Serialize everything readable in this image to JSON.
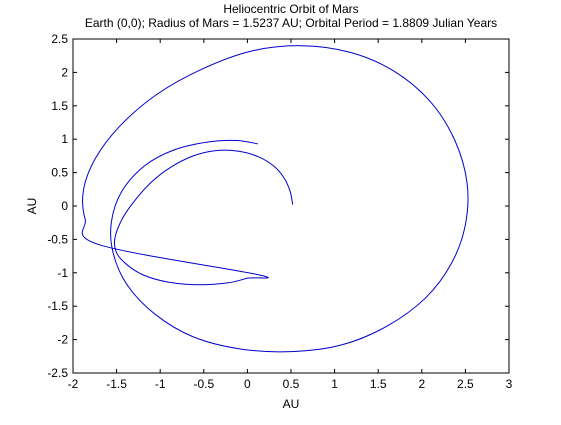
{
  "figure": {
    "background": "#ffffff"
  },
  "chart_data": {
    "type": "line",
    "title": "Heliocentric Orbit of Mars",
    "subtitle": "Earth (0,0); Radius of Mars = 1.5237 AU; Orbital Period = 1.8809 Julian Years",
    "xlabel": "AU",
    "ylabel": "AU",
    "xlim": [
      -2,
      3
    ],
    "ylim": [
      -2.5,
      2.5
    ],
    "xticks": [
      "-2",
      "-1.5",
      "-1",
      "-0.5",
      "0",
      "0.5",
      "1",
      "1.5",
      "2",
      "2.5",
      "3"
    ],
    "yticks": [
      "2.5",
      "2",
      "1.5",
      "1",
      "0.5",
      "0",
      "-0.5",
      "-1",
      "-1.5",
      "-2",
      "-2.5"
    ],
    "grid": false,
    "series": [
      {
        "color": "#0000cc",
        "points": [
          [
            0.52,
            0.02
          ],
          [
            0.49,
            0.22
          ],
          [
            0.42,
            0.42
          ],
          [
            0.3,
            0.6
          ],
          [
            0.12,
            0.74
          ],
          [
            -0.1,
            0.82
          ],
          [
            -0.36,
            0.83
          ],
          [
            -0.62,
            0.75
          ],
          [
            -0.88,
            0.58
          ],
          [
            -1.1,
            0.36
          ],
          [
            -1.28,
            0.1
          ],
          [
            -1.43,
            -0.18
          ],
          [
            -1.52,
            -0.48
          ],
          [
            -1.5,
            -0.7
          ],
          [
            -1.38,
            -0.88
          ],
          [
            -1.18,
            -1.04
          ],
          [
            -0.9,
            -1.14
          ],
          [
            -0.55,
            -1.18
          ],
          [
            -0.22,
            -1.15
          ],
          [
            0.0,
            -1.08
          ],
          [
            0.13,
            -1.03
          ],
          [
            -1.7,
            -0.58
          ],
          [
            -1.86,
            -0.2
          ],
          [
            -1.88,
            0.24
          ],
          [
            -1.74,
            0.72
          ],
          [
            -1.46,
            1.2
          ],
          [
            -1.05,
            1.66
          ],
          [
            -0.52,
            2.05
          ],
          [
            0.05,
            2.32
          ],
          [
            0.62,
            2.4
          ],
          [
            1.18,
            2.3
          ],
          [
            1.68,
            2.02
          ],
          [
            2.1,
            1.56
          ],
          [
            2.38,
            0.98
          ],
          [
            2.52,
            0.34
          ],
          [
            2.5,
            -0.28
          ],
          [
            2.34,
            -0.86
          ],
          [
            2.04,
            -1.38
          ],
          [
            1.6,
            -1.8
          ],
          [
            1.08,
            -2.08
          ],
          [
            0.5,
            -2.18
          ],
          [
            -0.08,
            -2.14
          ],
          [
            -0.62,
            -1.96
          ],
          [
            -1.06,
            -1.62
          ],
          [
            -1.38,
            -1.18
          ],
          [
            -1.54,
            -0.7
          ],
          [
            -1.56,
            -0.24
          ],
          [
            -1.44,
            0.22
          ],
          [
            -1.18,
            0.6
          ],
          [
            -0.84,
            0.84
          ],
          [
            -0.44,
            0.96
          ],
          [
            -0.12,
            0.98
          ],
          [
            0.12,
            0.93
          ]
        ]
      }
    ]
  }
}
